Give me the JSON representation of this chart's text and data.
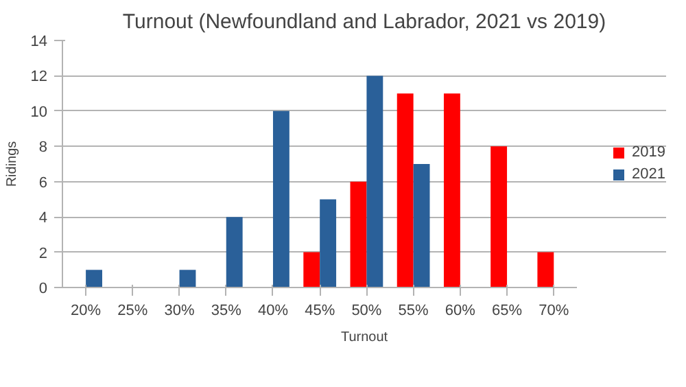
{
  "chart_data": {
    "type": "bar",
    "title": "Turnout (Newfoundland and Labrador, 2021 vs 2019)",
    "xlabel": "Turnout",
    "ylabel": "Ridings",
    "categories": [
      "20%",
      "25%",
      "30%",
      "35%",
      "40%",
      "45%",
      "50%",
      "55%",
      "60%",
      "65%",
      "70%"
    ],
    "series": [
      {
        "name": "2019",
        "color": "#ff0000",
        "values": [
          0,
          0,
          0,
          0,
          0,
          2,
          6,
          11,
          11,
          8,
          2
        ]
      },
      {
        "name": "2021",
        "color": "#2a6099",
        "values": [
          1,
          0,
          1,
          4,
          10,
          5,
          12,
          7,
          0,
          0,
          0
        ]
      }
    ],
    "ylim": [
      0,
      14
    ],
    "yticks": [
      0,
      2,
      4,
      6,
      8,
      10,
      12,
      14
    ],
    "grid": "y",
    "legend": "right"
  }
}
